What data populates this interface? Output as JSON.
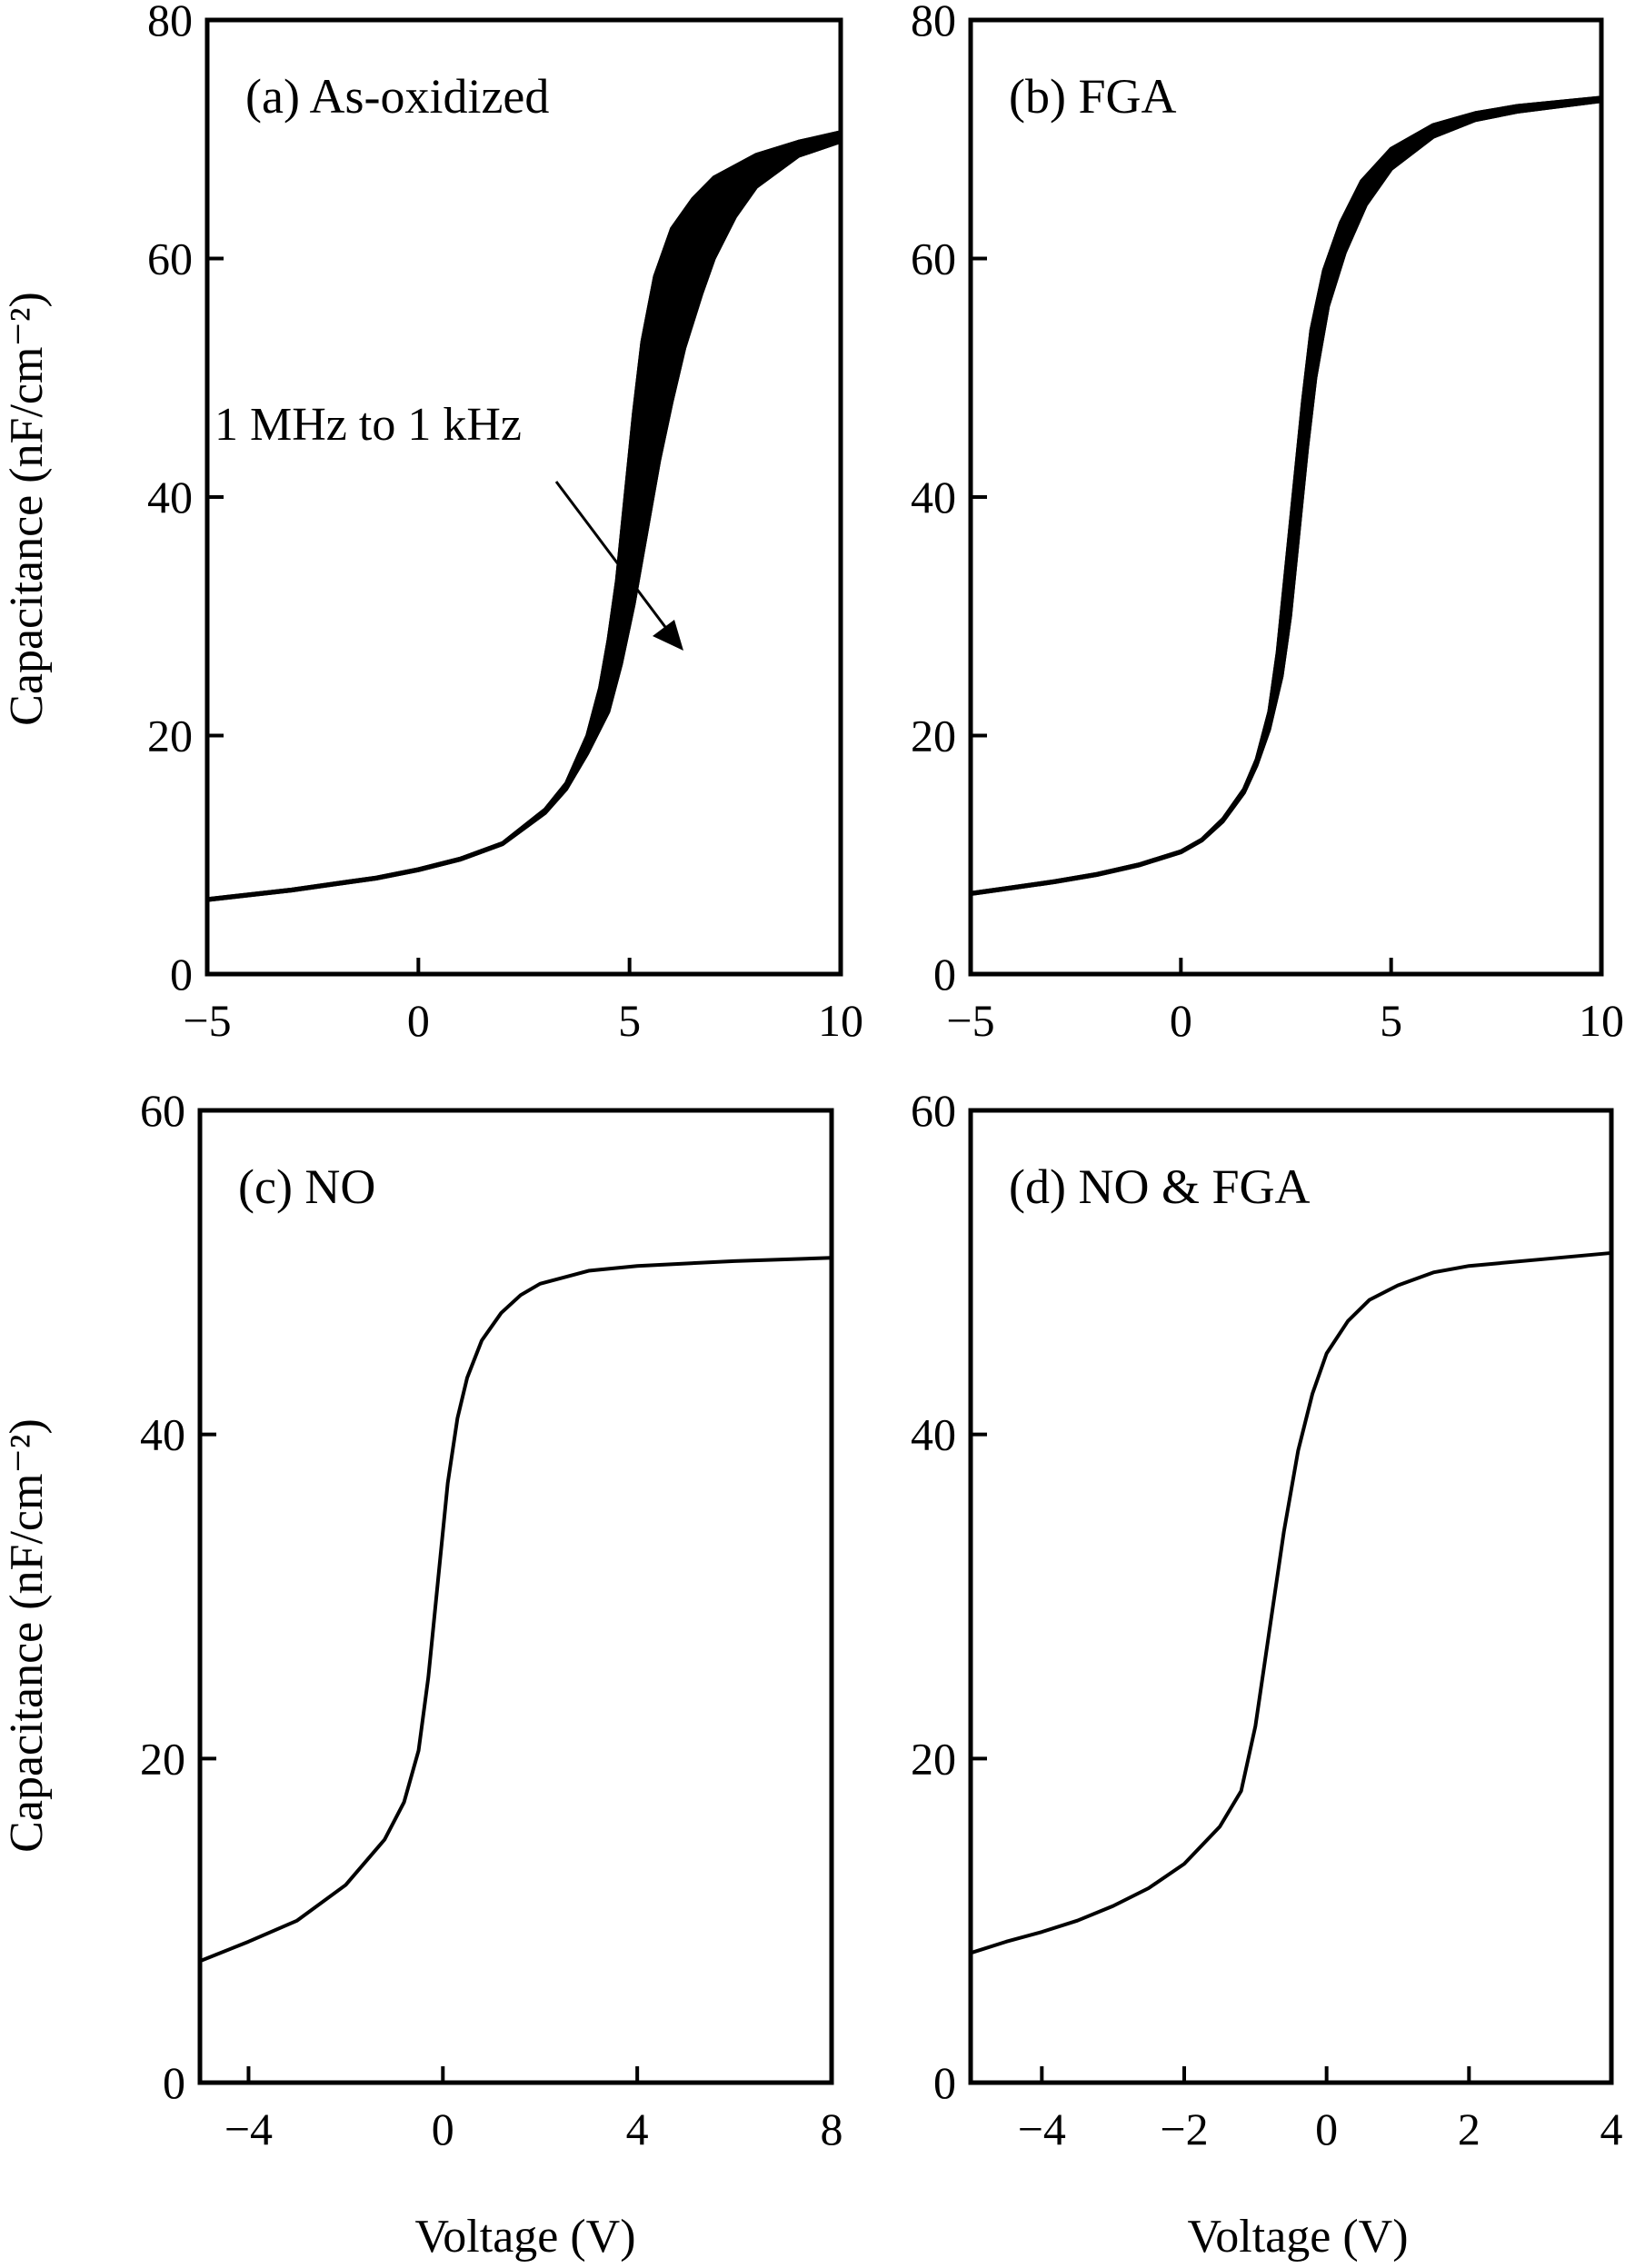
{
  "figure": {
    "ylabel_top": "Capacitance (nF/cm⁻²)",
    "ylabel_bottom": "Capacitance (nF/cm⁻²)",
    "xlabel_left": "Voltage (V)",
    "xlabel_right": "Voltage (V)"
  },
  "chart_data": [
    {
      "id": "a",
      "type": "line",
      "label": "(a) As-oxidized",
      "annotation": "1 MHz to 1 kHz",
      "xlim": [
        -5,
        10
      ],
      "ylim": [
        0,
        80
      ],
      "xticks": [
        -5,
        0,
        5,
        10
      ],
      "yticks": [
        0,
        20,
        40,
        60,
        80
      ],
      "xtick_labels": [
        "−5",
        "0",
        "5",
        "10"
      ],
      "ytick_labels": [
        "0",
        "20",
        "40",
        "60",
        "80"
      ],
      "band": true,
      "series": [
        {
          "x": [
            -5,
            -4,
            -3,
            -2,
            -1,
            0,
            1,
            2,
            3,
            3.5,
            4,
            4.3,
            4.5,
            4.7,
            4.9,
            5.1,
            5.3,
            5.6,
            6,
            6.5,
            7,
            8,
            9,
            10
          ],
          "y": [
            6.3,
            6.7,
            7.1,
            7.6,
            8.1,
            8.8,
            9.7,
            11,
            13.8,
            16,
            20,
            24,
            28,
            33,
            40,
            47,
            53,
            58.5,
            62.5,
            65,
            66.8,
            68.7,
            69.8,
            70.6
          ]
        },
        {
          "x": [
            -5,
            -4,
            -3,
            -2,
            -1,
            0,
            1,
            2,
            3,
            3.5,
            4,
            4.5,
            4.8,
            5.1,
            5.4,
            5.7,
            6,
            6.3,
            6.7,
            7,
            7.5,
            8,
            9,
            10
          ],
          "y": [
            6.2,
            6.6,
            7,
            7.5,
            8,
            8.7,
            9.6,
            10.9,
            13.5,
            15.5,
            18.5,
            22,
            26,
            31,
            37,
            43,
            48,
            52.5,
            57,
            60,
            63.5,
            66,
            68.6,
            69.8
          ]
        }
      ]
    },
    {
      "id": "b",
      "type": "line",
      "label": "(b) FGA",
      "xlim": [
        -5,
        10
      ],
      "ylim": [
        0,
        80
      ],
      "xticks": [
        -5,
        0,
        5,
        10
      ],
      "yticks": [
        0,
        20,
        40,
        60,
        80
      ],
      "xtick_labels": [
        "−5",
        "0",
        "5",
        "10"
      ],
      "ytick_labels": [
        "0",
        "20",
        "40",
        "60",
        "80"
      ],
      "band": true,
      "series": [
        {
          "x": [
            -5,
            -4,
            -3,
            -2,
            -1,
            0,
            0.5,
            1,
            1.5,
            1.8,
            2.1,
            2.3,
            2.5,
            2.7,
            2.9,
            3.1,
            3.4,
            3.8,
            4.3,
            5,
            6,
            7,
            8,
            10
          ],
          "y": [
            6.8,
            7.3,
            7.8,
            8.4,
            9.2,
            10.3,
            11.3,
            13,
            15.5,
            18,
            22,
            27,
            34,
            41,
            48,
            54,
            59,
            63,
            66.5,
            69.2,
            71.2,
            72.2,
            72.8,
            73.5
          ]
        },
        {
          "x": [
            -5,
            -4,
            -3,
            -2,
            -1,
            0,
            0.5,
            1,
            1.5,
            1.8,
            2.1,
            2.4,
            2.6,
            2.8,
            3,
            3.2,
            3.5,
            3.9,
            4.4,
            5,
            6,
            7,
            8,
            10
          ],
          "y": [
            6.7,
            7.2,
            7.7,
            8.3,
            9.1,
            10.2,
            11.2,
            12.8,
            15.2,
            17.5,
            20.5,
            25,
            30,
            37,
            44,
            50,
            56,
            60.5,
            64.5,
            67.5,
            70.2,
            71.6,
            72.3,
            73.2
          ]
        }
      ]
    },
    {
      "id": "c",
      "type": "line",
      "label": "(c) NO",
      "xlim": [
        -5,
        8
      ],
      "ylim": [
        0,
        60
      ],
      "xticks": [
        -4,
        0,
        4,
        8
      ],
      "yticks": [
        0,
        20,
        40,
        60
      ],
      "xtick_labels": [
        "−4",
        "0",
        "4",
        "8"
      ],
      "ytick_labels": [
        "0",
        "20",
        "40",
        "60"
      ],
      "band": false,
      "series": [
        {
          "x": [
            -5,
            -4,
            -3,
            -2,
            -1.2,
            -0.8,
            -0.5,
            -0.3,
            -0.1,
            0.1,
            0.3,
            0.5,
            0.8,
            1.2,
            1.6,
            2,
            3,
            4,
            6,
            8
          ],
          "y": [
            7.5,
            8.7,
            10,
            12.2,
            15,
            17.3,
            20.5,
            25,
            31,
            37,
            41,
            43.5,
            45.8,
            47.5,
            48.6,
            49.3,
            50.1,
            50.4,
            50.7,
            50.9
          ]
        }
      ]
    },
    {
      "id": "d",
      "type": "line",
      "label": "(d) NO & FGA",
      "xlim": [
        -5,
        4
      ],
      "ylim": [
        0,
        60
      ],
      "xticks": [
        -4,
        -2,
        0,
        2,
        4
      ],
      "yticks": [
        0,
        20,
        40,
        60
      ],
      "xtick_labels": [
        "−4",
        "−2",
        "0",
        "2",
        "4"
      ],
      "ytick_labels": [
        "0",
        "20",
        "40",
        "60"
      ],
      "band": false,
      "series": [
        {
          "x": [
            -5,
            -4.5,
            -4,
            -3.5,
            -3,
            -2.5,
            -2,
            -1.5,
            -1.2,
            -1,
            -0.8,
            -0.6,
            -0.4,
            -0.2,
            0,
            0.3,
            0.6,
            1,
            1.5,
            2,
            3,
            4
          ],
          "y": [
            8,
            8.7,
            9.3,
            10,
            10.9,
            12,
            13.5,
            15.8,
            18,
            22,
            28,
            34,
            39,
            42.5,
            45,
            47,
            48.3,
            49.2,
            50,
            50.4,
            50.8,
            51.2
          ]
        }
      ]
    }
  ]
}
